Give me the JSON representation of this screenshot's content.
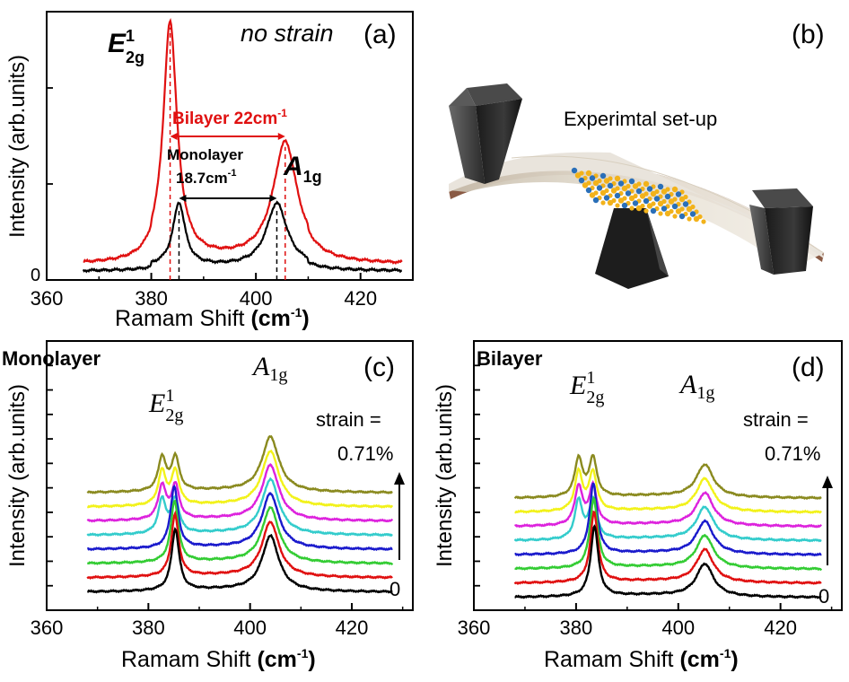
{
  "figure": {
    "panels": {
      "a": {
        "label": "(a)",
        "title": "no strain",
        "ylabel": "Intensity (arb.units)",
        "xlabel_main": "Ramam Shift ",
        "xlabel_unit": "(cm",
        "xlabel_exp": "-1",
        "xlabel_close": ")",
        "yzero": "0",
        "e2g_main": "E",
        "e2g_sup": "1",
        "e2g_sub": "2g",
        "a1g_main": "A",
        "a1g_sub": "1g",
        "bilayer_text": "Bilayer 22cm",
        "bilayer_exp": "-1",
        "mono_text1": "Monolayer",
        "mono_text2": "18.7cm",
        "mono_exp": "-1"
      },
      "b": {
        "label": "(b)",
        "caption": "Experimtal set-up"
      },
      "c": {
        "label": "(c)",
        "title": "Monolayer",
        "ylabel": "Intensity (arb.units)",
        "xlabel_main": "Ramam Shift ",
        "xlabel_unit": "(cm",
        "xlabel_exp": "-1",
        "xlabel_close": ")",
        "e2g_main": "E",
        "e2g_sup": "1",
        "e2g_sub": "2g",
        "a1g_main": "A",
        "a1g_sub": "1g",
        "strain_label": "strain =",
        "strain_max": "0.71%",
        "strain_min": "0"
      },
      "d": {
        "label": "(d)",
        "title": "Bilayer",
        "ylabel": "Intensity (arb.units)",
        "xlabel_main": "Ramam Shift ",
        "xlabel_unit": "(cm",
        "xlabel_exp": "-1",
        "xlabel_close": ")",
        "e2g_main": "E",
        "e2g_sup": "1",
        "e2g_sub": "2g",
        "a1g_main": "A",
        "a1g_sub": "1g",
        "strain_label": "strain =",
        "strain_max": "0.71%",
        "strain_min": "0"
      }
    },
    "colors": {
      "bilayer_red": "#e01010",
      "monolayer_black": "#000000",
      "strain_series": [
        "#000000",
        "#e01010",
        "#33cc33",
        "#1a1acc",
        "#33cccc",
        "#dd22dd",
        "#f2f21a",
        "#8a8a1f"
      ]
    }
  },
  "chart_data": [
    {
      "panel": "a",
      "type": "line",
      "title": "no strain",
      "xlabel": "Ramam Shift (cm-1)",
      "ylabel": "Intensity (arb.units)",
      "xlim": [
        360,
        430
      ],
      "ylim": [
        0,
        1.15
      ],
      "xticks": [
        360,
        380,
        400,
        420
      ],
      "yticks": [
        0
      ],
      "x_range": [
        367,
        428
      ],
      "series": [
        {
          "name": "Bilayer",
          "color": "#e01010",
          "baseline": 0.03,
          "peaks": [
            {
              "center": 383.6,
              "height": 1.05,
              "width": 1.6
            },
            {
              "center": 405.6,
              "height": 0.52,
              "width": 2.8
            }
          ]
        },
        {
          "name": "Monolayer",
          "color": "#000000",
          "baseline": 0.0,
          "peaks": [
            {
              "center": 385.3,
              "height": 0.28,
              "width": 1.4
            },
            {
              "center": 404.0,
              "height": 0.28,
              "width": 2.4
            }
          ]
        }
      ],
      "annotations": [
        {
          "text": "Bilayer 22cm-1",
          "from": 383.6,
          "to": 405.6
        },
        {
          "text": "Monolayer 18.7cm-1",
          "from": 385.3,
          "to": 404.0
        }
      ]
    },
    {
      "panel": "c",
      "type": "line",
      "title": "Monolayer",
      "xlabel": "Ramam Shift (cm-1)",
      "ylabel": "Intensity (arb.units)",
      "xlim": [
        360,
        432
      ],
      "xticks": [
        360,
        380,
        400,
        420
      ],
      "x_range": [
        368,
        428
      ],
      "strain_range": [
        "0",
        "0.71%"
      ],
      "offset_step": 1.0,
      "series_count": 8,
      "e2g_split_start": 4,
      "e2g_base_center": 385.3,
      "e2g_split_centers": [
        382.7,
        385.3
      ],
      "a1g_center": 404.0,
      "e2g_height": 3.6,
      "a1g_height": 3.2
    },
    {
      "panel": "d",
      "type": "line",
      "title": "Bilayer",
      "xlabel": "Ramam Shift (cm-1)",
      "ylabel": "Intensity (arb.units)",
      "xlim": [
        360,
        432
      ],
      "xticks": [
        360,
        380,
        400,
        420
      ],
      "x_range": [
        368,
        428
      ],
      "strain_range": [
        "0",
        "0.71%"
      ],
      "offset_step": 1.0,
      "series_count": 8,
      "e2g_split_start": 4,
      "e2g_base_center": 383.6,
      "e2g_split_centers": [
        380.5,
        383.3
      ],
      "a1g_center": 405.2,
      "e2g_height": 4.1,
      "a1g_height": 1.9
    }
  ]
}
